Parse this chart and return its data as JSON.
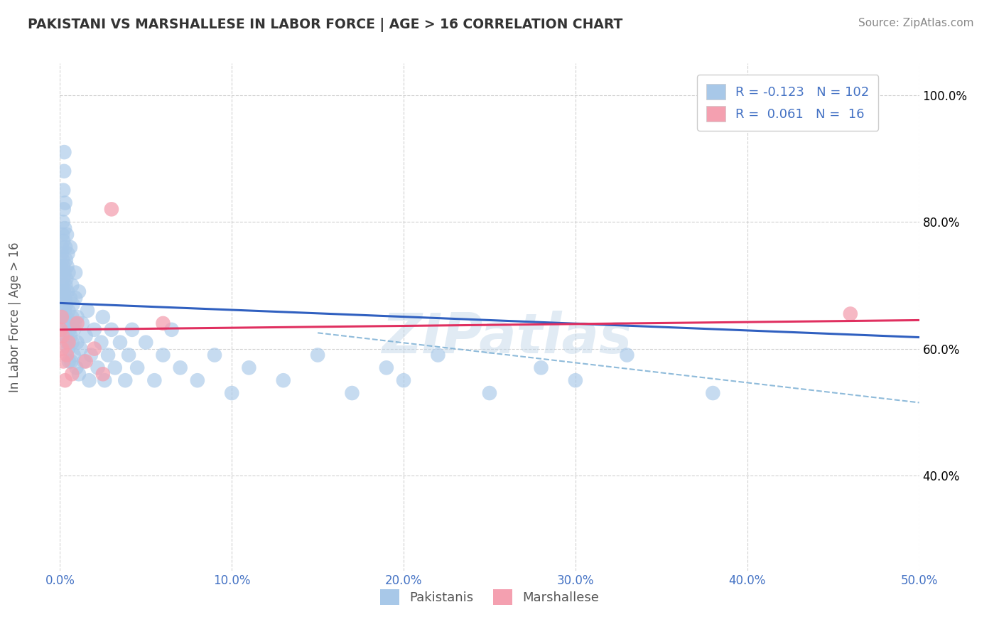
{
  "title": "PAKISTANI VS MARSHALLESE IN LABOR FORCE | AGE > 16 CORRELATION CHART",
  "source_text": "Source: ZipAtlas.com",
  "ylabel": "In Labor Force | Age > 16",
  "xlim": [
    0.0,
    0.5
  ],
  "ylim": [
    0.25,
    1.05
  ],
  "xticks": [
    0.0,
    0.1,
    0.2,
    0.3,
    0.4,
    0.5
  ],
  "yticks": [
    0.4,
    0.6,
    0.8,
    1.0
  ],
  "R_pakistani": -0.123,
  "N_pakistani": 102,
  "R_marshallese": 0.061,
  "N_marshallese": 16,
  "blue_color": "#A8C8E8",
  "pink_color": "#F4A0B0",
  "blue_line_color": "#3060C0",
  "pink_line_color": "#E03060",
  "blue_dash_color": "#7BAFD4",
  "watermark": "ZIPatlas",
  "blue_line_x0": 0.0,
  "blue_line_y0": 0.672,
  "blue_line_x1": 0.5,
  "blue_line_y1": 0.618,
  "pink_line_x0": 0.0,
  "pink_line_x1": 0.5,
  "pink_line_y0": 0.63,
  "pink_line_y1": 0.645,
  "dash_line_x0": 0.15,
  "dash_line_y0": 0.625,
  "dash_line_x1": 0.5,
  "dash_line_y1": 0.515,
  "pakistani_x": [
    0.0005,
    0.0008,
    0.001,
    0.001,
    0.0012,
    0.0013,
    0.0014,
    0.0015,
    0.0015,
    0.0016,
    0.0017,
    0.0018,
    0.0019,
    0.002,
    0.002,
    0.002,
    0.0022,
    0.0023,
    0.0024,
    0.0025,
    0.0025,
    0.0026,
    0.0027,
    0.0028,
    0.003,
    0.003,
    0.0032,
    0.0033,
    0.0034,
    0.0035,
    0.0036,
    0.0037,
    0.0038,
    0.004,
    0.004,
    0.0042,
    0.0044,
    0.0045,
    0.0046,
    0.0048,
    0.005,
    0.005,
    0.0052,
    0.0055,
    0.006,
    0.006,
    0.0062,
    0.0065,
    0.007,
    0.007,
    0.0072,
    0.0075,
    0.008,
    0.008,
    0.0085,
    0.009,
    0.009,
    0.0095,
    0.01,
    0.01,
    0.011,
    0.011,
    0.012,
    0.013,
    0.014,
    0.015,
    0.016,
    0.017,
    0.018,
    0.02,
    0.022,
    0.024,
    0.025,
    0.026,
    0.028,
    0.03,
    0.032,
    0.035,
    0.038,
    0.04,
    0.042,
    0.045,
    0.05,
    0.055,
    0.06,
    0.065,
    0.07,
    0.08,
    0.09,
    0.1,
    0.11,
    0.13,
    0.15,
    0.17,
    0.19,
    0.2,
    0.22,
    0.25,
    0.28,
    0.3,
    0.33,
    0.38
  ],
  "pakistani_y": [
    0.73,
    0.69,
    0.75,
    0.68,
    0.72,
    0.76,
    0.7,
    0.78,
    0.65,
    0.74,
    0.8,
    0.67,
    0.71,
    0.85,
    0.73,
    0.77,
    0.82,
    0.69,
    0.88,
    0.64,
    0.91,
    0.72,
    0.66,
    0.79,
    0.68,
    0.83,
    0.76,
    0.7,
    0.62,
    0.74,
    0.67,
    0.71,
    0.65,
    0.78,
    0.61,
    0.73,
    0.69,
    0.64,
    0.75,
    0.6,
    0.66,
    0.72,
    0.58,
    0.63,
    0.68,
    0.76,
    0.62,
    0.58,
    0.7,
    0.65,
    0.61,
    0.67,
    0.63,
    0.59,
    0.64,
    0.68,
    0.72,
    0.57,
    0.61,
    0.65,
    0.69,
    0.56,
    0.6,
    0.64,
    0.58,
    0.62,
    0.66,
    0.55,
    0.59,
    0.63,
    0.57,
    0.61,
    0.65,
    0.55,
    0.59,
    0.63,
    0.57,
    0.61,
    0.55,
    0.59,
    0.63,
    0.57,
    0.61,
    0.55,
    0.59,
    0.63,
    0.57,
    0.55,
    0.59,
    0.53,
    0.57,
    0.55,
    0.59,
    0.53,
    0.57,
    0.55,
    0.59,
    0.53,
    0.57,
    0.55,
    0.59,
    0.53
  ],
  "marshallese_x": [
    0.0005,
    0.001,
    0.0013,
    0.0016,
    0.002,
    0.003,
    0.004,
    0.005,
    0.007,
    0.01,
    0.015,
    0.02,
    0.025,
    0.03,
    0.06,
    0.46
  ],
  "marshallese_y": [
    0.63,
    0.65,
    0.6,
    0.62,
    0.58,
    0.55,
    0.59,
    0.61,
    0.56,
    0.64,
    0.58,
    0.6,
    0.56,
    0.82,
    0.64,
    0.655
  ]
}
